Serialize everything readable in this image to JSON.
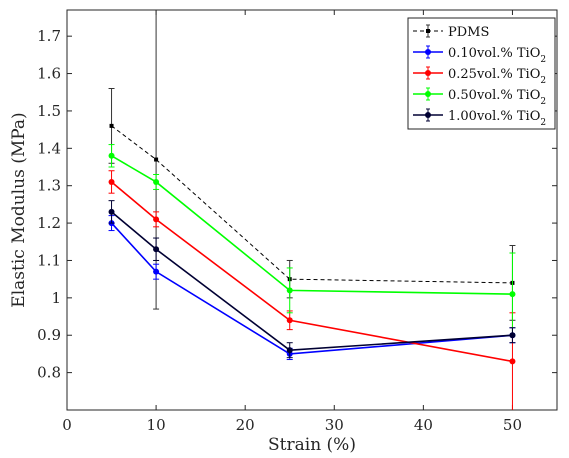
{
  "chart_data": {
    "type": "line",
    "xlabel": "Strain (%)",
    "ylabel": "Elastic Modulus (MPa)",
    "xlim": [
      0,
      55
    ],
    "ylim": [
      0.7,
      1.77
    ],
    "x_ticks": [
      0,
      10,
      20,
      30,
      40,
      50
    ],
    "y_ticks": [
      0.8,
      0.9,
      1,
      1.1,
      1.2,
      1.3,
      1.4,
      1.5,
      1.6,
      1.7
    ],
    "x_tick_labels": [
      "0",
      "10",
      "20",
      "30",
      "40",
      "50"
    ],
    "y_tick_labels": [
      "0.8",
      "0.9",
      "1",
      "1.1",
      "1.2",
      "1.3",
      "1.4",
      "1.5",
      "1.6",
      "1.7"
    ],
    "grid": false,
    "legend_position": "top-right",
    "x": [
      5,
      10,
      25,
      50
    ],
    "series": [
      {
        "name": "PDMS",
        "color": "#000000",
        "dashed": true,
        "values": [
          1.46,
          1.37,
          1.05,
          1.04
        ],
        "errors": [
          0.1,
          0.4,
          0.05,
          0.1
        ]
      },
      {
        "name": "0.10vol.% TiO2",
        "color": "#0000ff",
        "dashed": false,
        "values": [
          1.2,
          1.07,
          0.85,
          0.9
        ],
        "errors": [
          0.02,
          0.02,
          0.015,
          0.02
        ]
      },
      {
        "name": "0.25vol.% TiO2",
        "color": "#ff0000",
        "dashed": false,
        "values": [
          1.31,
          1.21,
          0.94,
          0.83
        ],
        "errors": [
          0.03,
          0.02,
          0.025,
          0.13
        ]
      },
      {
        "name": "0.50vol.% TiO2",
        "color": "#00ff00",
        "dashed": false,
        "values": [
          1.38,
          1.31,
          1.02,
          1.01
        ],
        "errors": [
          0.03,
          0.02,
          0.06,
          0.11
        ]
      },
      {
        "name": "1.00vol.% TiO2",
        "color": "#000033",
        "dashed": false,
        "values": [
          1.23,
          1.13,
          0.86,
          0.9
        ],
        "errors": [
          0.03,
          0.03,
          0.02,
          0.02
        ]
      }
    ],
    "legend_entries": [
      {
        "main": "PDMS",
        "sub": ""
      },
      {
        "main": "0.10vol.% TiO",
        "sub": "2"
      },
      {
        "main": "0.25vol.% TiO",
        "sub": "2"
      },
      {
        "main": "0.50vol.% TiO",
        "sub": "2"
      },
      {
        "main": "1.00vol.% TiO",
        "sub": "2"
      }
    ]
  }
}
